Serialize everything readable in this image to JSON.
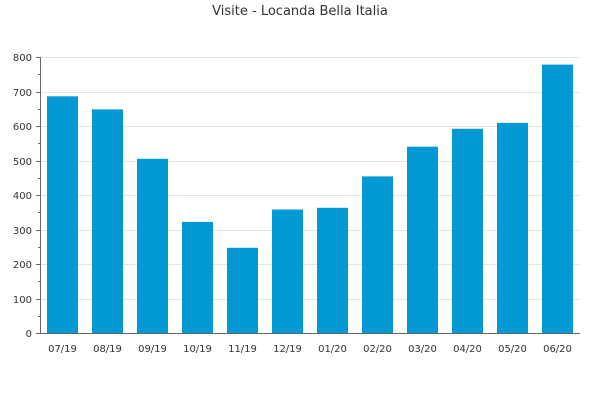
{
  "chart_data": {
    "type": "bar",
    "title": "Visite - Locanda Bella Italia",
    "xlabel": "",
    "ylabel": "",
    "categories": [
      "07/19",
      "08/19",
      "09/19",
      "10/19",
      "11/19",
      "12/19",
      "01/20",
      "02/20",
      "03/20",
      "04/20",
      "05/20",
      "06/20"
    ],
    "values": [
      686,
      648,
      505,
      322,
      247,
      358,
      363,
      454,
      540,
      592,
      609,
      778
    ],
    "ylim": [
      0,
      800
    ],
    "yticks": [
      0,
      100,
      200,
      300,
      400,
      500,
      600,
      700,
      800
    ],
    "grid": true,
    "bar_color": "#0399d4",
    "grid_color": "#e5e5e5",
    "axis_color": "#666666"
  }
}
